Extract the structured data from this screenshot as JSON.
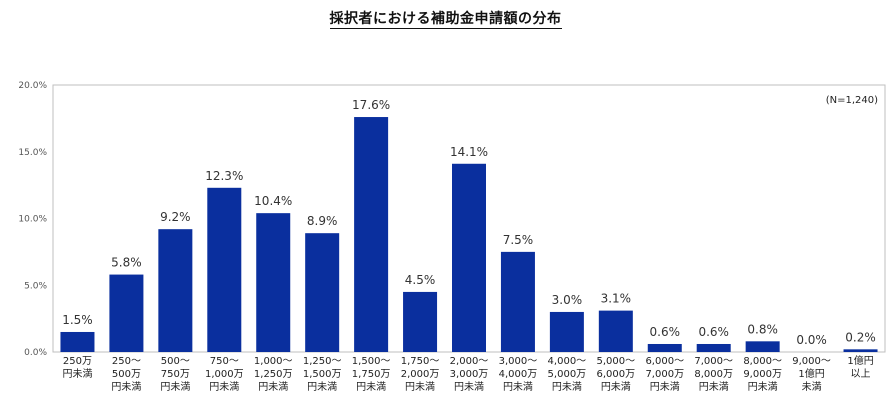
{
  "chart_data": {
    "type": "bar",
    "title": "採択者における補助金申請額の分布",
    "note": "(N=1,240)",
    "ylim": [
      0,
      20
    ],
    "yticks": [
      "0.0%",
      "5.0%",
      "10.0%",
      "15.0%",
      "20.0%"
    ],
    "grid": false,
    "bar_color": "#0a2f9e",
    "categories": [
      [
        "250万",
        "円未満"
      ],
      [
        "250～",
        "500万",
        "円未満"
      ],
      [
        "500～",
        "750万",
        "円未満"
      ],
      [
        "750～",
        "1,000万",
        "円未満"
      ],
      [
        "1,000～",
        "1,250万",
        "円未満"
      ],
      [
        "1,250～",
        "1,500万",
        "円未満"
      ],
      [
        "1,500～",
        "1,750万",
        "円未満"
      ],
      [
        "1,750～",
        "2,000万",
        "円未満"
      ],
      [
        "2,000～",
        "3,000万",
        "円未満"
      ],
      [
        "3,000～",
        "4,000万",
        "円未満"
      ],
      [
        "4,000～",
        "5,000万",
        "円未満"
      ],
      [
        "5,000～",
        "6,000万",
        "円未満"
      ],
      [
        "6,000～",
        "7,000万",
        "円未満"
      ],
      [
        "7,000～",
        "8,000万",
        "円未満"
      ],
      [
        "8,000～",
        "9,000万",
        "円未満"
      ],
      [
        "9,000～",
        "1億円",
        "未満"
      ],
      [
        "1億円",
        "以上"
      ]
    ],
    "values": [
      1.5,
      5.8,
      9.2,
      12.3,
      10.4,
      8.9,
      17.6,
      4.5,
      14.1,
      7.5,
      3.0,
      3.1,
      0.6,
      0.6,
      0.8,
      0.0,
      0.2
    ],
    "value_labels": [
      "1.5%",
      "5.8%",
      "9.2%",
      "12.3%",
      "10.4%",
      "8.9%",
      "17.6%",
      "4.5%",
      "14.1%",
      "7.5%",
      "3.0%",
      "3.1%",
      "0.6%",
      "0.6%",
      "0.8%",
      "0.0%",
      "0.2%"
    ]
  }
}
